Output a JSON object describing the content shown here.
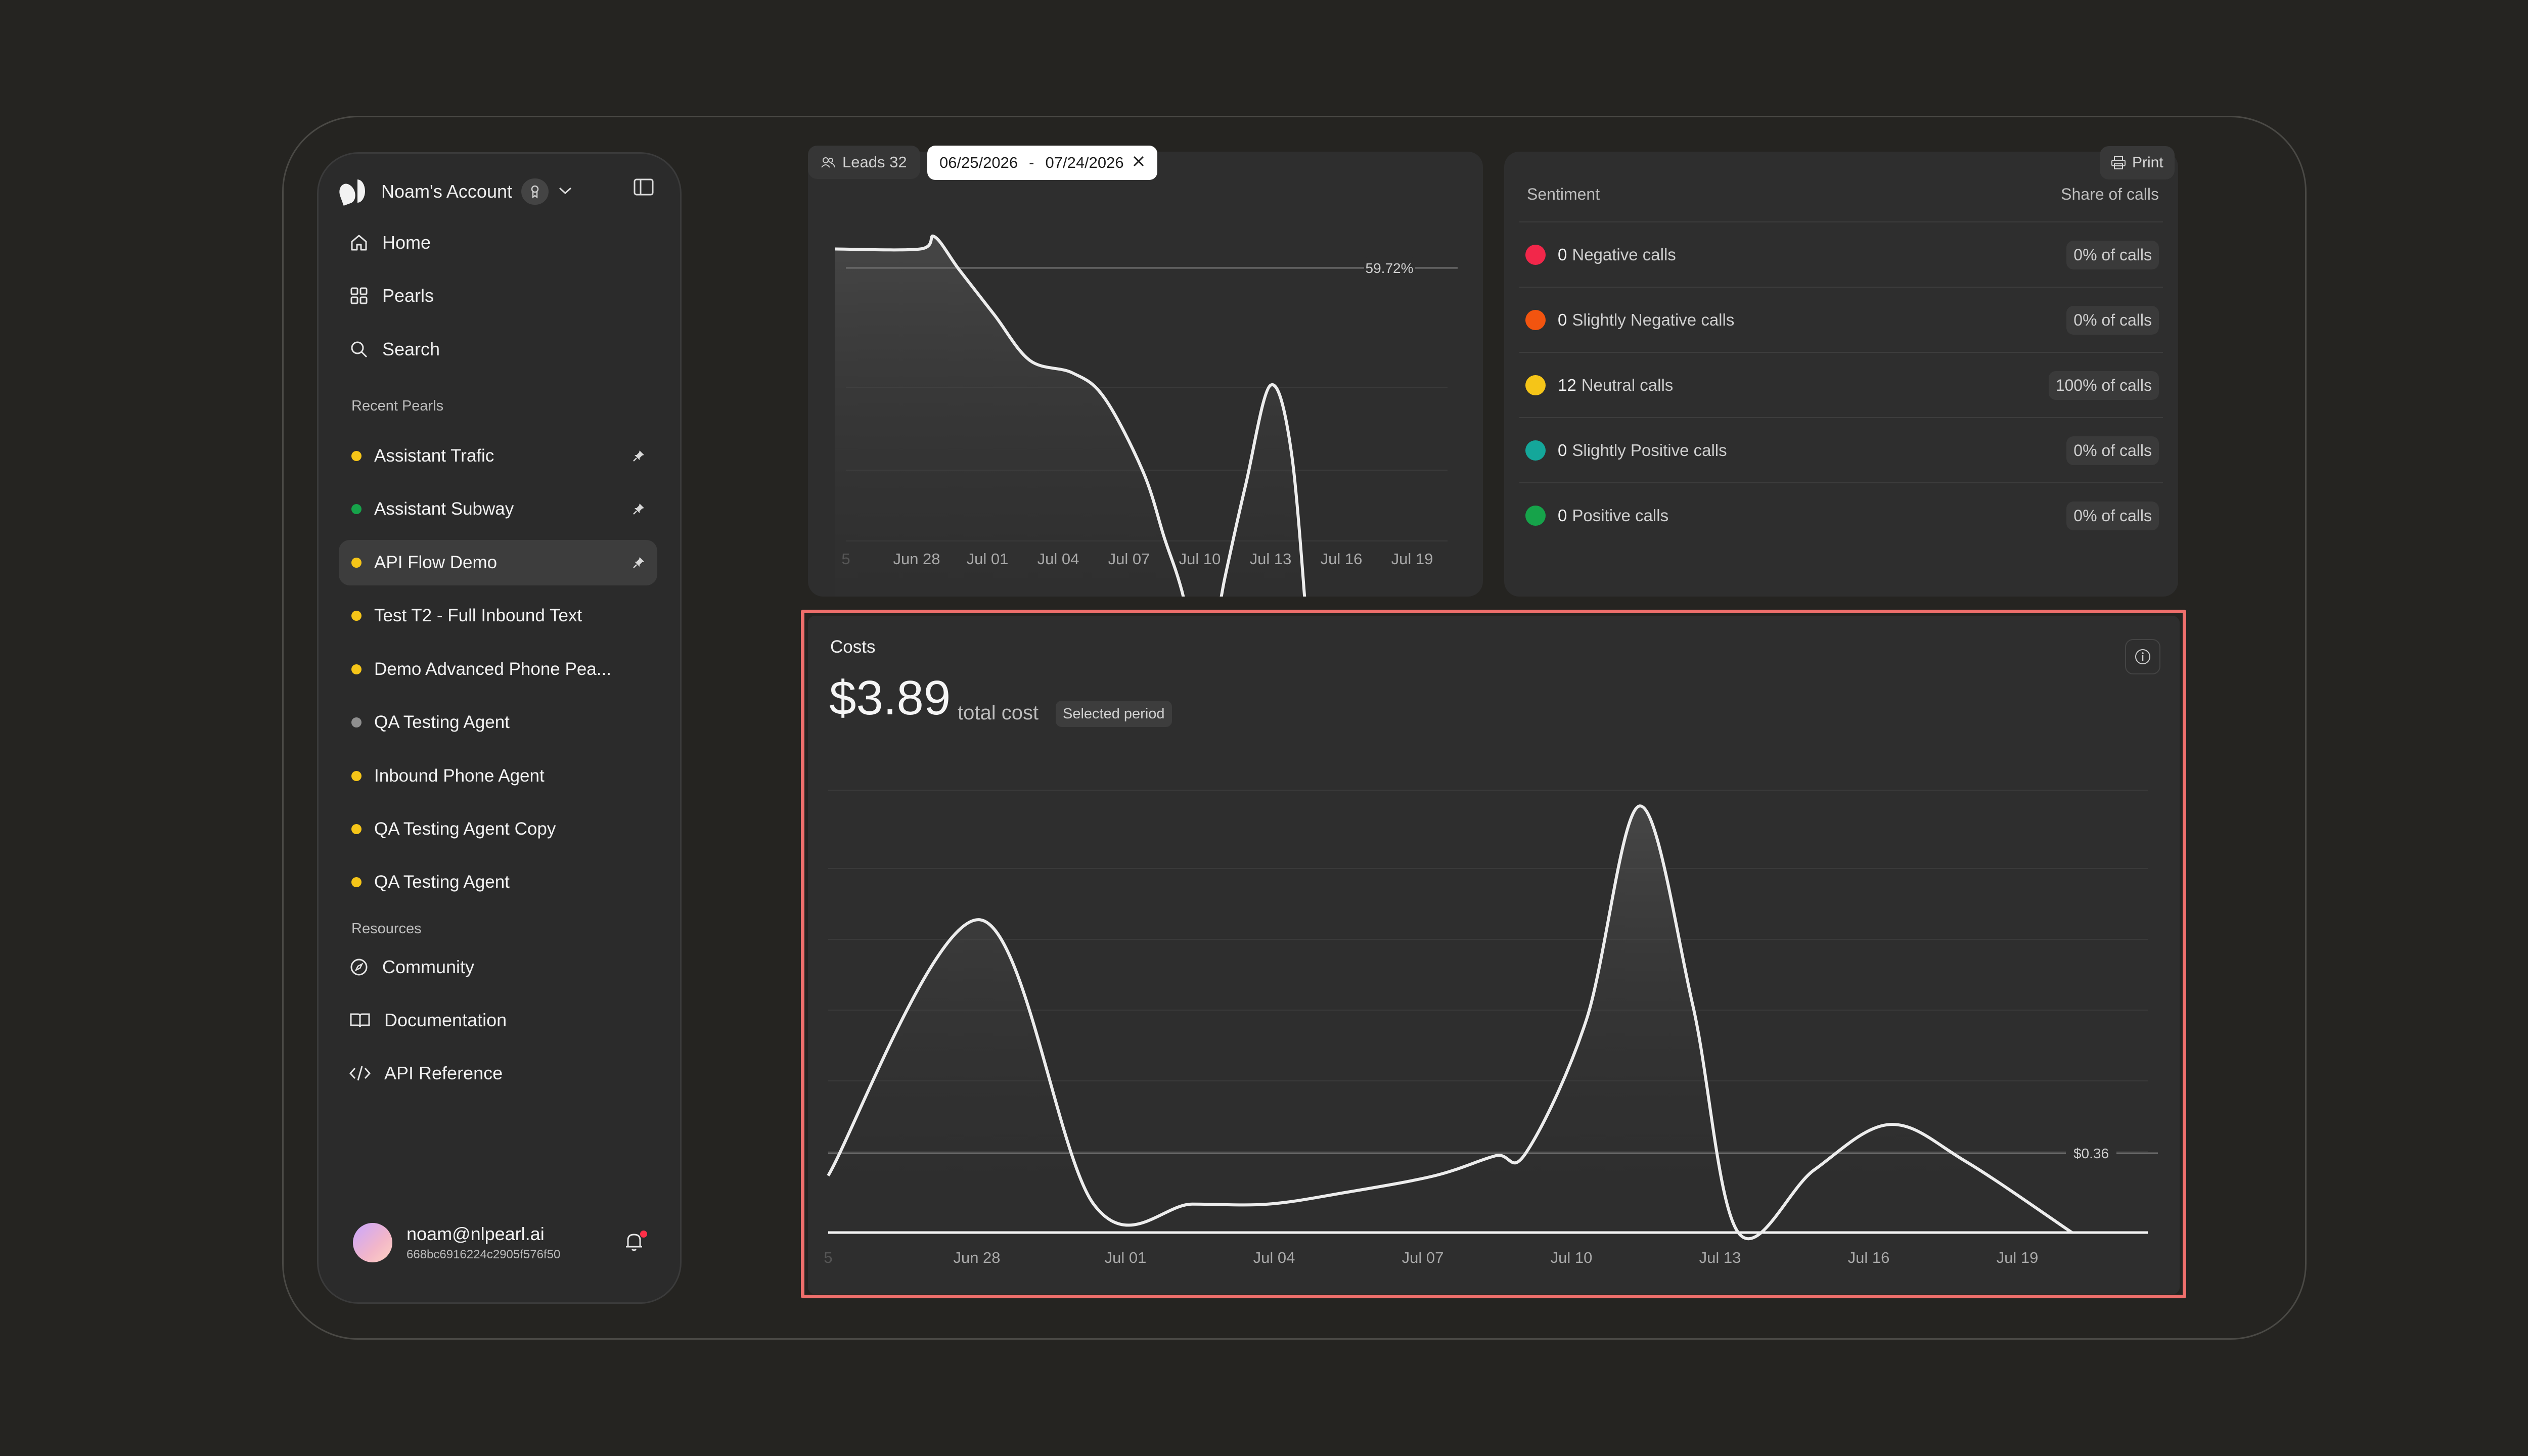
{
  "sidebar": {
    "account_name": "Noam's Account",
    "nav": [
      {
        "label": "Home",
        "icon": "home-icon"
      },
      {
        "label": "Pearls",
        "icon": "grid-icon"
      },
      {
        "label": "Search",
        "icon": "search-icon"
      }
    ],
    "recent_label": "Recent Pearls",
    "pearls": [
      {
        "label": "Assistant Trafic",
        "color": "#f5c518",
        "pinned": true,
        "active": false
      },
      {
        "label": "Assistant Subway",
        "color": "#16a34a",
        "pinned": true,
        "active": false
      },
      {
        "label": "API Flow Demo",
        "color": "#f5c518",
        "pinned": true,
        "active": true
      },
      {
        "label": "Test T2 - Full Inbound Text",
        "color": "#f5c518",
        "pinned": false,
        "active": false
      },
      {
        "label": "Demo Advanced Phone Pea...",
        "color": "#f5c518",
        "pinned": false,
        "active": false
      },
      {
        "label": "QA Testing Agent",
        "color": "#8f8f8f",
        "pinned": false,
        "active": false
      },
      {
        "label": "Inbound Phone Agent",
        "color": "#f5c518",
        "pinned": false,
        "active": false
      },
      {
        "label": "QA Testing Agent Copy",
        "color": "#f5c518",
        "pinned": false,
        "active": false
      },
      {
        "label": "QA Testing Agent",
        "color": "#f5c518",
        "pinned": false,
        "active": false
      }
    ],
    "resources_label": "Resources",
    "resources": [
      {
        "label": "Community",
        "icon": "compass-icon"
      },
      {
        "label": "Documentation",
        "icon": "book-icon"
      },
      {
        "label": "API Reference",
        "icon": "code-icon"
      }
    ],
    "user_email": "noam@nlpearl.ai",
    "user_id": "668bc6916224c2905f576f50"
  },
  "toolbar": {
    "leads_label": "Leads 32",
    "date_start": "06/25/2026",
    "date_sep": "-",
    "date_end": "07/24/2026",
    "print_label": "Print"
  },
  "sentiment": {
    "header_left": "Sentiment",
    "header_right": "Share of calls",
    "rows": [
      {
        "count": "0",
        "label": "Negative calls",
        "share": "0% of calls",
        "color": "#f2274a"
      },
      {
        "count": "0",
        "label": "Slightly Negative calls",
        "share": "0% of calls",
        "color": "#f2540f"
      },
      {
        "count": "12",
        "label": "Neutral calls",
        "share": "100% of calls",
        "color": "#f5c518"
      },
      {
        "count": "0",
        "label": "Slightly Positive calls",
        "share": "0% of calls",
        "color": "#14a79a"
      },
      {
        "count": "0",
        "label": "Positive calls",
        "share": "0% of calls",
        "color": "#16a34a"
      }
    ]
  },
  "costs": {
    "title": "Costs",
    "amount": "$3.89",
    "sub": "total cost",
    "badge": "Selected period"
  },
  "chart_data": [
    {
      "type": "area",
      "title": "",
      "x_tick_labels": [
        "5",
        "Jun 28",
        "Jul 01",
        "Jul 04",
        "Jul 07",
        "Jul 10",
        "Jul 13",
        "Jul 16",
        "Jul 19"
      ],
      "reference_label": "59.72%",
      "series": [
        {
          "points": [
            [
              -0.15,
              1.05
            ],
            [
              1.05,
              1.05
            ],
            [
              1.25,
              1.08
            ],
            [
              1.6,
              1.0
            ],
            [
              2.1,
              0.89
            ],
            [
              2.6,
              0.78
            ],
            [
              3.2,
              0.75
            ],
            [
              3.65,
              0.69
            ],
            [
              4.2,
              0.51
            ],
            [
              4.5,
              0.35
            ],
            [
              4.75,
              0.22
            ],
            [
              5.05,
              0.0
            ],
            [
              5.35,
              0.25
            ],
            [
              5.65,
              0.48
            ],
            [
              6.0,
              0.72
            ],
            [
              6.3,
              0.55
            ],
            [
              6.55,
              0.05
            ]
          ]
        }
      ],
      "ylim": [
        0,
        1.2
      ]
    },
    {
      "type": "area",
      "title": "Costs",
      "x_tick_labels": [
        "5",
        "Jun 28",
        "Jul 01",
        "Jul 04",
        "Jul 07",
        "Jul 10",
        "Jul 13",
        "Jul 16",
        "Jul 19"
      ],
      "reference_label": "$0.36",
      "reference_value": 0.36,
      "series": [
        {
          "points": [
            [
              0,
              0.2
            ],
            [
              1,
              1.1
            ],
            [
              1.75,
              0.1
            ],
            [
              2.4,
              0.1
            ],
            [
              2.9,
              0.1
            ],
            [
              3.4,
              0.14
            ],
            [
              4,
              0.2
            ],
            [
              4.4,
              0.27
            ],
            [
              4.6,
              0.28
            ],
            [
              5.0,
              0.75
            ],
            [
              5.35,
              1.5
            ],
            [
              5.7,
              0.8
            ],
            [
              6.0,
              0.0
            ],
            [
              6.5,
              0.22
            ],
            [
              7.0,
              0.38
            ],
            [
              7.5,
              0.25
            ],
            [
              8.2,
              0.0
            ]
          ]
        }
      ],
      "ylim": [
        0,
        1.6
      ]
    }
  ]
}
